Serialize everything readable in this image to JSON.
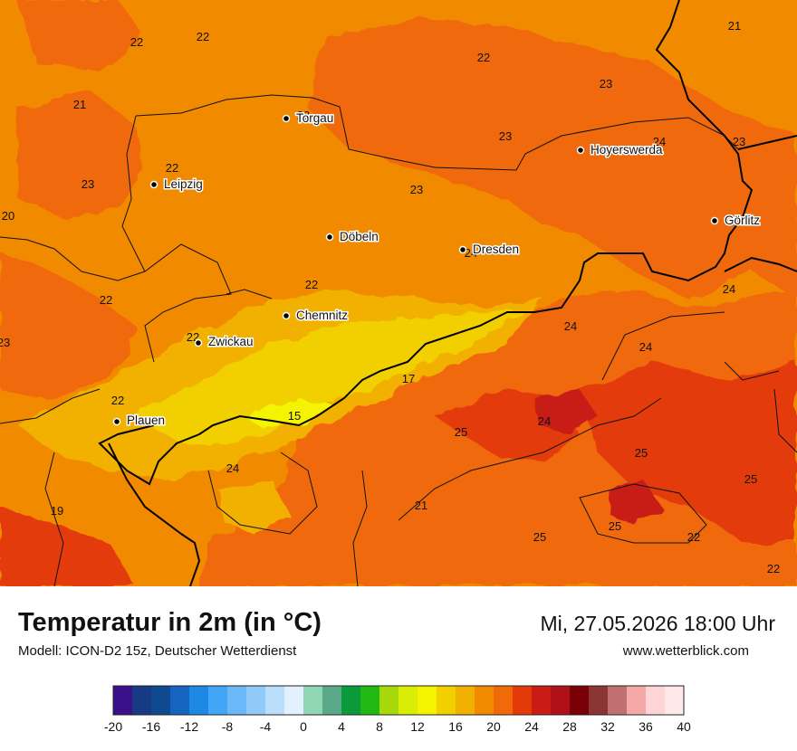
{
  "header": {
    "title": "Temperatur in 2m (in °C)",
    "model": "Modell: ICON-D2 15z, Deutscher Wetterdienst",
    "datetime": "Mi, 27.05.2026 18:00 Uhr",
    "website": "www.wetterblick.com"
  },
  "cities": [
    {
      "name": "Torgau"
    },
    {
      "name": "Leipzig"
    },
    {
      "name": "Hoyerswerda"
    },
    {
      "name": "Görlitz"
    },
    {
      "name": "Döbeln"
    },
    {
      "name": "Dresden"
    },
    {
      "name": "Chemnitz"
    },
    {
      "name": "Zwickau"
    },
    {
      "name": "Plauen"
    }
  ],
  "temperature_labels": [
    {
      "value": "22"
    },
    {
      "value": "22"
    },
    {
      "value": "22"
    },
    {
      "value": "21"
    },
    {
      "value": "21"
    },
    {
      "value": "23"
    },
    {
      "value": "23"
    },
    {
      "value": "23"
    },
    {
      "value": "24"
    },
    {
      "value": "23"
    },
    {
      "value": "22"
    },
    {
      "value": "23"
    },
    {
      "value": "20"
    },
    {
      "value": "23"
    },
    {
      "value": "24"
    },
    {
      "value": "22"
    },
    {
      "value": "22"
    },
    {
      "value": "24"
    },
    {
      "value": "23"
    },
    {
      "value": "22"
    },
    {
      "value": "24"
    },
    {
      "value": "24"
    },
    {
      "value": "17"
    },
    {
      "value": "22"
    },
    {
      "value": "15"
    },
    {
      "value": "25"
    },
    {
      "value": "24"
    },
    {
      "value": "25"
    },
    {
      "value": "24"
    },
    {
      "value": "25"
    },
    {
      "value": "19"
    },
    {
      "value": "21"
    },
    {
      "value": "25"
    },
    {
      "value": "25"
    },
    {
      "value": "22"
    },
    {
      "value": "22"
    }
  ],
  "legend": {
    "ticks": [
      "-20",
      "-16",
      "-12",
      "-8",
      "-4",
      "0",
      "4",
      "8",
      "12",
      "16",
      "20",
      "24",
      "28",
      "32",
      "36",
      "40"
    ],
    "colors": [
      "#3b0f8a",
      "#163a84",
      "#0f4a90",
      "#1565c0",
      "#1e88e5",
      "#42a5f5",
      "#6ab8f7",
      "#90caf9",
      "#bbdefb",
      "#e3f0fd",
      "#8fd6b2",
      "#5aa88a",
      "#0a9a3c",
      "#22b814",
      "#a7d80a",
      "#d8ec06",
      "#f4f400",
      "#f2d000",
      "#f2b000",
      "#f28a00",
      "#f06a0a",
      "#e43a0a",
      "#c81c14",
      "#b01018",
      "#7a0008",
      "#8a3434",
      "#c07070",
      "#f4a8a8",
      "#ffd4d4",
      "#ffe8e8"
    ]
  }
}
